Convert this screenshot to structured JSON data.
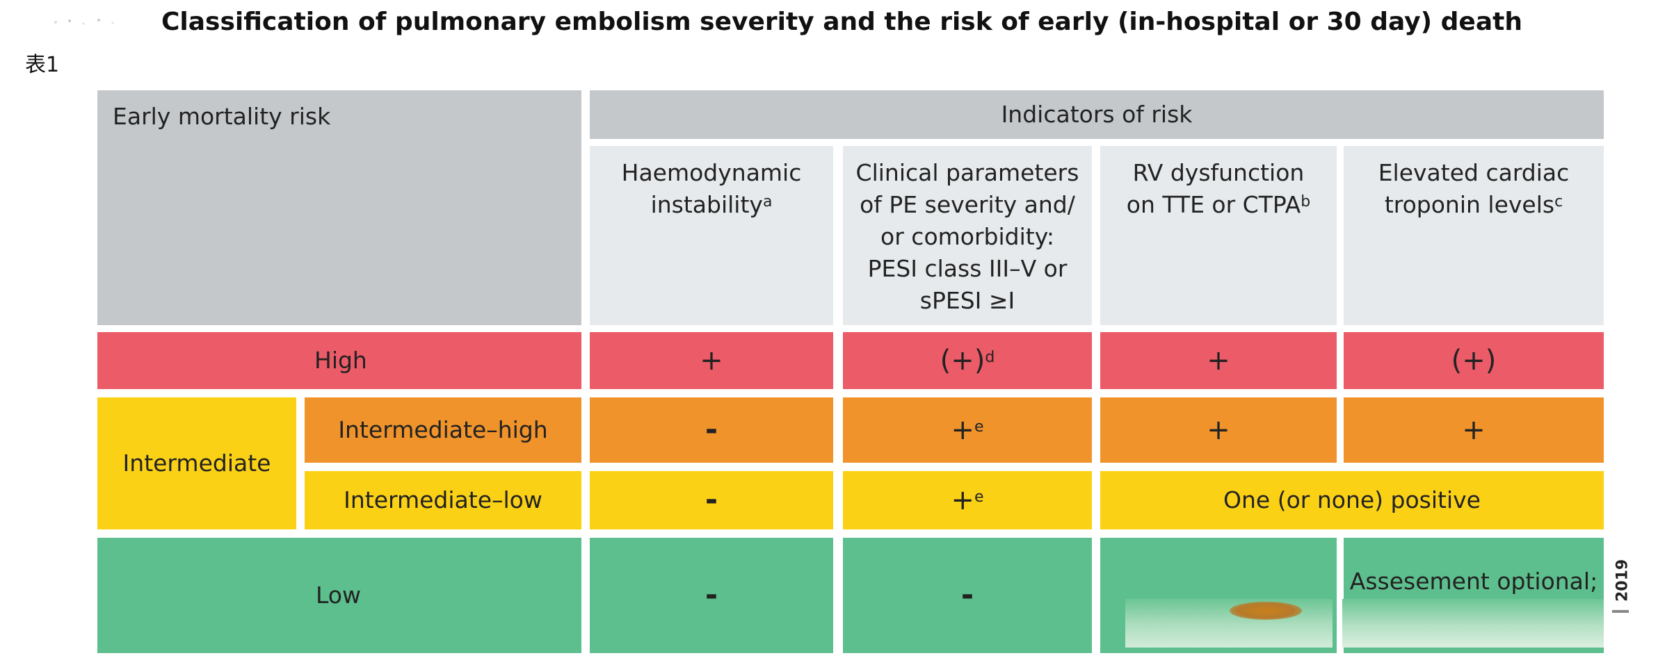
{
  "title": "Classification of pulmonary embolism severity and the risk of early (in-hospital or 30 day) death",
  "table_label": "表1",
  "header": {
    "left": "Early mortality risk",
    "group": "Indicators of risk",
    "col1": {
      "text": "Haemodynamic instability",
      "sup": "a"
    },
    "col2": {
      "line1": "Clinical parameters",
      "line2": "of PE severity and/",
      "line3": "or comorbidity:",
      "line4": "PESI class III–V or",
      "line5": "sPESI ≥I"
    },
    "col3": {
      "text": "RV dysfunction on TTE or CTPA",
      "sup": "b"
    },
    "col4": {
      "text": "Elevated cardiac troponin levels",
      "sup": "c"
    }
  },
  "rows": {
    "high": {
      "label": "High",
      "c1": "+",
      "c2": "(+)",
      "c2_sup": "d",
      "c3": "+",
      "c4": "(+)"
    },
    "intermediate": {
      "label": "Intermediate"
    },
    "intermediate_high": {
      "label": "Intermediate–high",
      "c1": "-",
      "c2": "+",
      "c2_sup": "e",
      "c3": "+",
      "c4": "+"
    },
    "intermediate_low": {
      "label": "Intermediate–low",
      "c1": "-",
      "c2": "+",
      "c2_sup": "e",
      "c34": "One (or none) positive"
    },
    "low": {
      "label": "Low",
      "c1": "-",
      "c2": "-",
      "c4": "Assesement optional;"
    }
  },
  "footer_year": "2019",
  "colors": {
    "header_gray": "#c4c8cb",
    "header_light": "#e6eaec",
    "high": "#ec5b68",
    "intermediate_high": "#f0932b",
    "intermediate": "#fbd116",
    "low": "#5dbf8d"
  }
}
